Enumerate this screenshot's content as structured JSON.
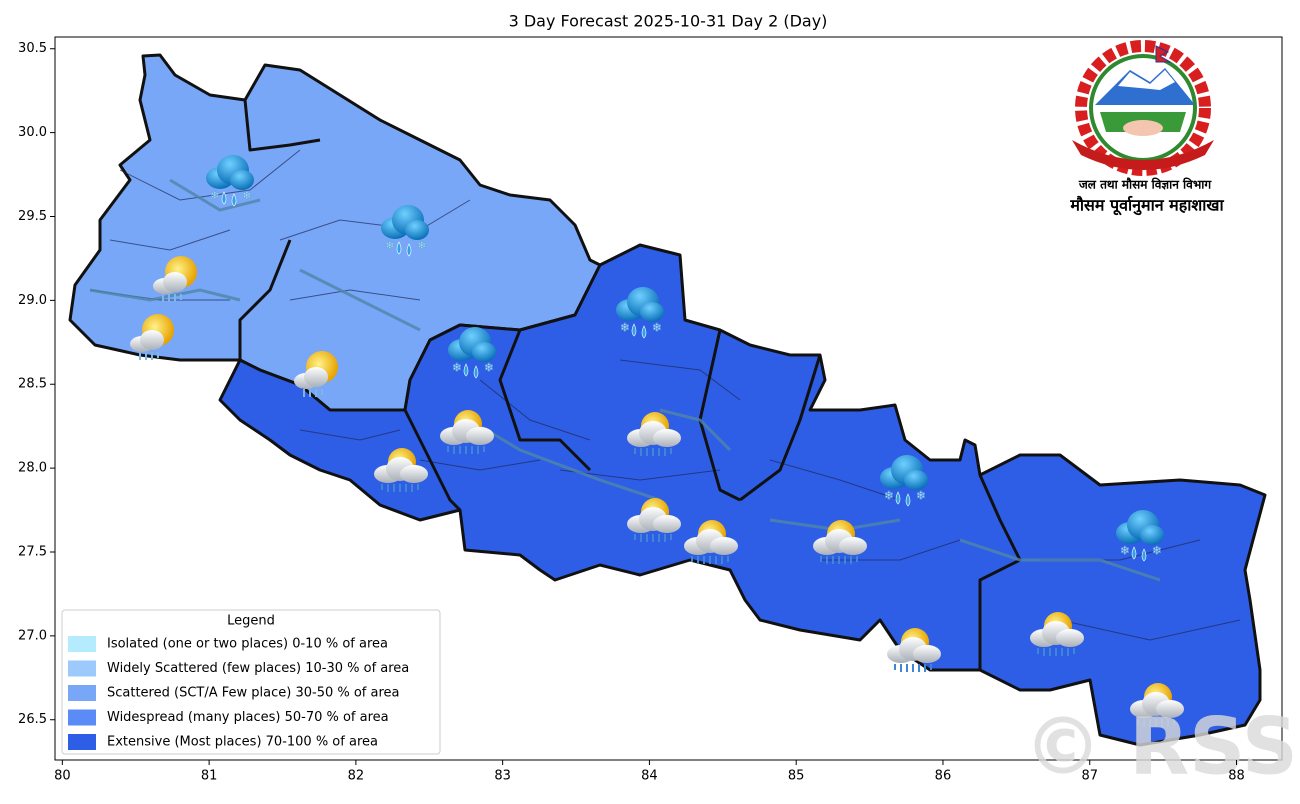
{
  "chart_data": {
    "type": "map",
    "title": "3 Day Forecast 2025-10-31 Day 2 (Day)",
    "xlim": [
      79.95,
      88.31
    ],
    "ylim": [
      26.26,
      30.57
    ],
    "xticks": [
      80,
      81,
      82,
      83,
      84,
      85,
      86,
      87,
      88
    ],
    "yticks": [
      26.5,
      {
        "value": 27,
        "label": "27.0"
      },
      27.5,
      {
        "value": 28,
        "label": "28.0"
      },
      28.5,
      {
        "value": 29,
        "label": "29.0"
      },
      29.5,
      {
        "value": 30,
        "label": "30.0"
      },
      30.5
    ],
    "legend_title": "Legend",
    "legend_loc": "lower left",
    "series": [
      {
        "name": "Isolated (one or two places)  0-10 % of area",
        "color": "#b5ecfd"
      },
      {
        "name": "Widely Scattered (few places)  10-30 % of area",
        "color": "#9ccafc"
      },
      {
        "name": "Scattered (SCT/A Few place)  30-50 % of area",
        "color": "#79a7f8"
      },
      {
        "name": "Widespread (many places)  50-70 % of area",
        "color": "#5a8bf6"
      },
      {
        "name": "Extensive (Most places)  70-100 % of area",
        "color": "#2f5ee6"
      }
    ]
  },
  "logo": {
    "line1": "जल तथा मौसम विज्ञान विभाग",
    "line2": "मौसम पूर्वानुमान महाशाखा"
  },
  "watermark": "© RSS"
}
